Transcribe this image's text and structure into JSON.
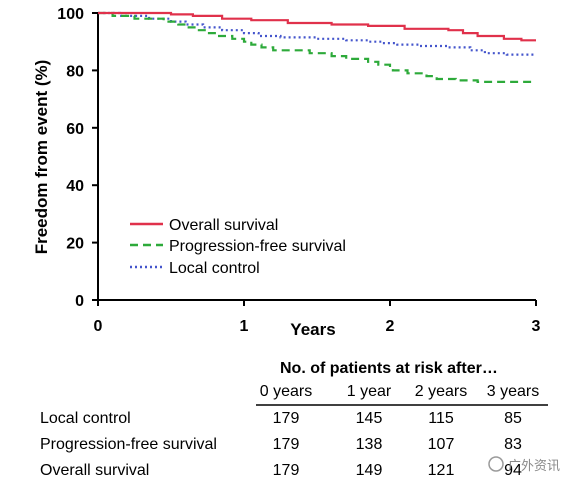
{
  "chart_data": {
    "type": "line",
    "title": "",
    "xlabel": "Years",
    "ylabel": "Freedom from event (%)",
    "xlim": [
      0,
      3
    ],
    "ylim": [
      0,
      100
    ],
    "xticks": [
      "0",
      "1",
      "2",
      "3"
    ],
    "yticks": [
      "0",
      "20",
      "40",
      "60",
      "80",
      "100"
    ],
    "legend_position": "bottom-left",
    "series": [
      {
        "name": "Overall survival",
        "color": "#e0314b",
        "style": "solid",
        "steps": [
          [
            0,
            100
          ],
          [
            0.5,
            99.5
          ],
          [
            0.65,
            99
          ],
          [
            0.85,
            98
          ],
          [
            1.05,
            97.5
          ],
          [
            1.3,
            96.5
          ],
          [
            1.6,
            96
          ],
          [
            1.85,
            95.5
          ],
          [
            2.1,
            94.5
          ],
          [
            2.4,
            94
          ],
          [
            2.5,
            93
          ],
          [
            2.6,
            92
          ],
          [
            2.78,
            91
          ],
          [
            2.9,
            90.5
          ],
          [
            3,
            90.5
          ]
        ]
      },
      {
        "name": "Progression-free survival",
        "color": "#2daa3a",
        "style": "dashed",
        "steps": [
          [
            0,
            100
          ],
          [
            0.1,
            99
          ],
          [
            0.25,
            98
          ],
          [
            0.45,
            97
          ],
          [
            0.55,
            96
          ],
          [
            0.6,
            95
          ],
          [
            0.68,
            94
          ],
          [
            0.75,
            93
          ],
          [
            0.82,
            92
          ],
          [
            0.92,
            91
          ],
          [
            1.0,
            90
          ],
          [
            1.05,
            89
          ],
          [
            1.12,
            88
          ],
          [
            1.2,
            87
          ],
          [
            1.45,
            86
          ],
          [
            1.6,
            85
          ],
          [
            1.7,
            84
          ],
          [
            1.85,
            83
          ],
          [
            1.92,
            82
          ],
          [
            2.0,
            81
          ],
          [
            2.02,
            80
          ],
          [
            2.12,
            79
          ],
          [
            2.25,
            78
          ],
          [
            2.32,
            77
          ],
          [
            2.45,
            76.5
          ],
          [
            2.6,
            76
          ],
          [
            3,
            76
          ]
        ]
      },
      {
        "name": "Local control",
        "color": "#4455cc",
        "style": "dotted",
        "steps": [
          [
            0,
            100
          ],
          [
            0.15,
            99
          ],
          [
            0.35,
            98
          ],
          [
            0.5,
            97
          ],
          [
            0.6,
            96
          ],
          [
            0.72,
            95
          ],
          [
            0.85,
            94
          ],
          [
            1.0,
            93
          ],
          [
            1.1,
            92
          ],
          [
            1.25,
            91.5
          ],
          [
            1.5,
            91
          ],
          [
            1.7,
            90.5
          ],
          [
            1.85,
            90
          ],
          [
            1.95,
            89.5
          ],
          [
            2.05,
            89
          ],
          [
            2.2,
            88.5
          ],
          [
            2.4,
            88
          ],
          [
            2.55,
            87
          ],
          [
            2.65,
            86
          ],
          [
            2.8,
            85.5
          ],
          [
            3,
            85.5
          ]
        ]
      }
    ],
    "risk_table": {
      "heading": "No. of patients at risk after…",
      "columns": [
        "0 years",
        "1 year",
        "2 years",
        "3 years"
      ],
      "rows": [
        {
          "label": "Local control",
          "values": [
            "179",
            "145",
            "115",
            "85"
          ]
        },
        {
          "label": "Progression-free survival",
          "values": [
            "179",
            "138",
            "107",
            "83"
          ]
        },
        {
          "label": "Overall survival",
          "values": [
            "179",
            "149",
            "121",
            "94"
          ]
        }
      ]
    },
    "watermark": "广外资讯"
  }
}
